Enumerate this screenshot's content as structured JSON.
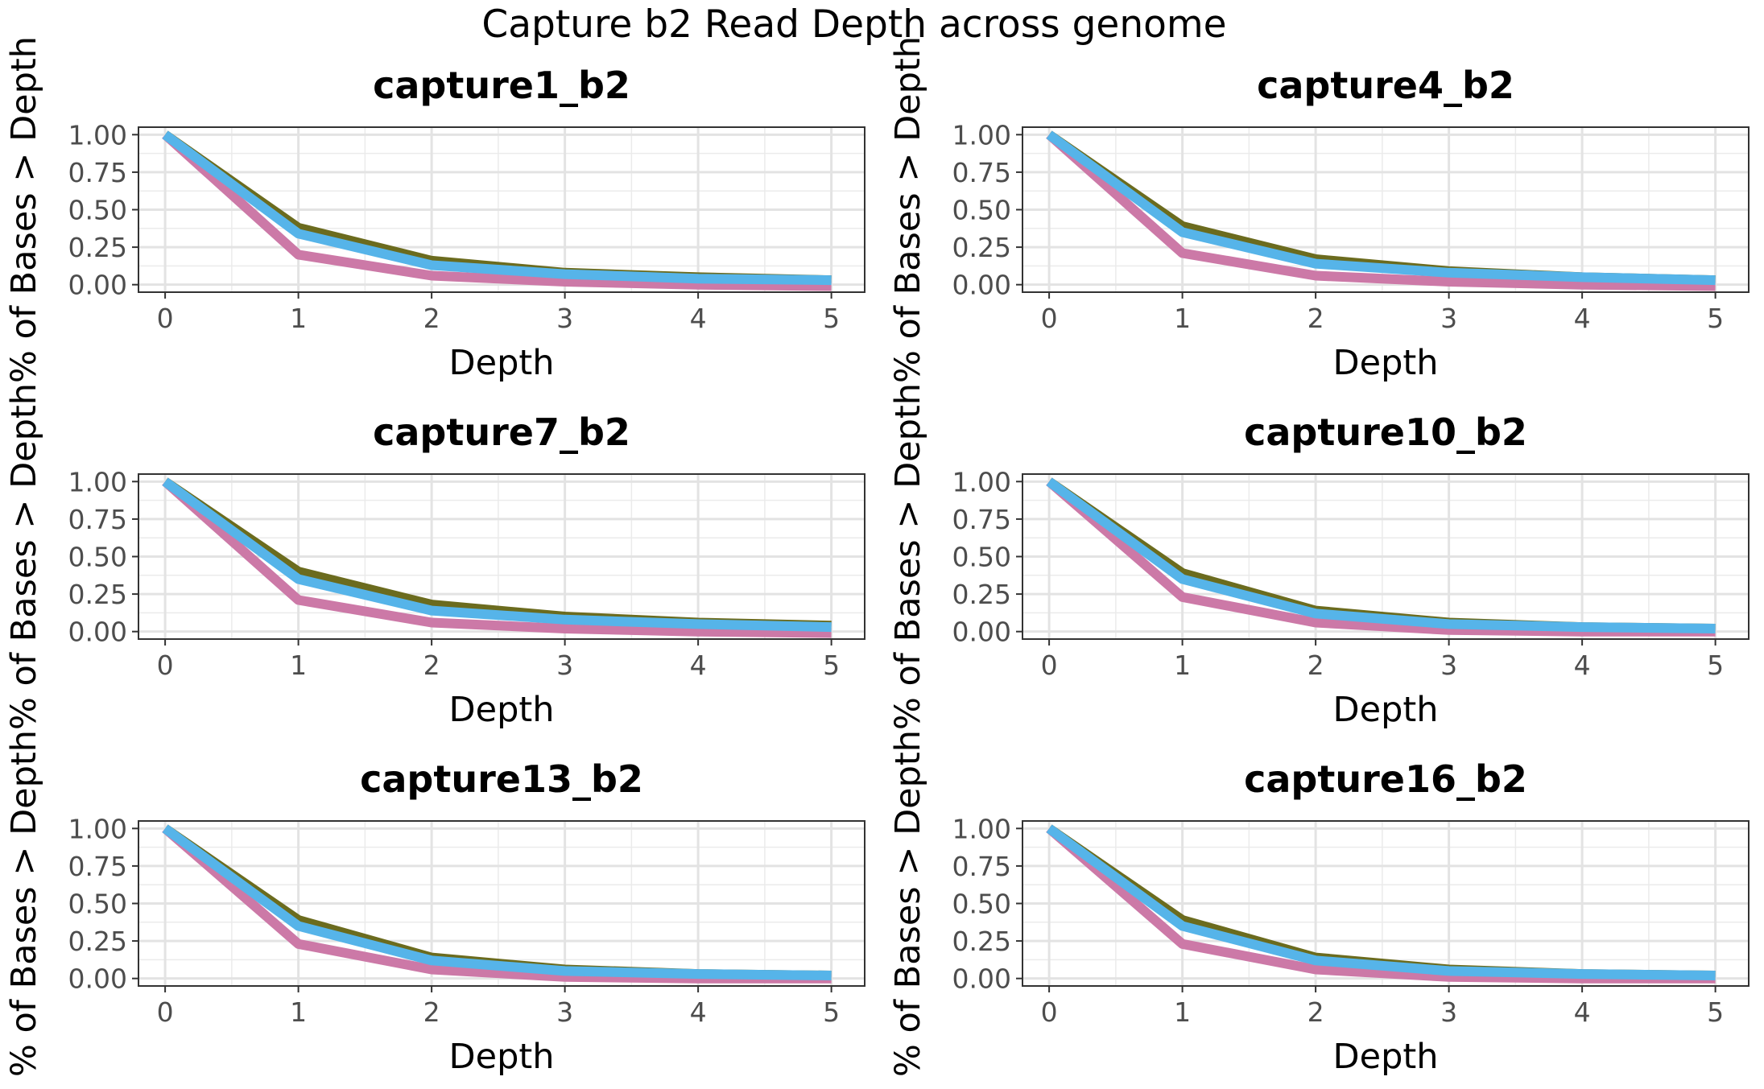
{
  "figure": {
    "title": "Capture b2 Read Depth across genome"
  },
  "series_colors": [
    "#6B6B1E",
    "#CC79A7",
    "#56B4E9"
  ],
  "chart_data": [
    {
      "type": "line",
      "title": "capture1_b2",
      "xlabel": "Depth",
      "ylabel": "% of Bases > Depth",
      "x": [
        0,
        1,
        2,
        3,
        4,
        5
      ],
      "xlim": [
        -0.2,
        5.25
      ],
      "ylim": [
        -0.05,
        1.05
      ],
      "xticks": [
        "0",
        "1",
        "2",
        "3",
        "4",
        "5"
      ],
      "yticks": [
        "0.00",
        "0.25",
        "0.50",
        "0.75",
        "1.00"
      ],
      "grid": true,
      "series": [
        {
          "color": "#6B6B1E",
          "values": [
            1.0,
            0.38,
            0.16,
            0.08,
            0.05,
            0.03
          ]
        },
        {
          "color": "#CC79A7",
          "values": [
            1.0,
            0.2,
            0.06,
            0.02,
            0.0,
            -0.01
          ]
        },
        {
          "color": "#56B4E9",
          "values": [
            1.0,
            0.34,
            0.13,
            0.07,
            0.04,
            0.03
          ]
        }
      ]
    },
    {
      "type": "line",
      "title": "capture4_b2",
      "xlabel": "Depth",
      "ylabel": "% of Bases > Depth",
      "x": [
        0,
        1,
        2,
        3,
        4,
        5
      ],
      "xlim": [
        -0.2,
        5.25
      ],
      "ylim": [
        -0.05,
        1.05
      ],
      "xticks": [
        "0",
        "1",
        "2",
        "3",
        "4",
        "5"
      ],
      "yticks": [
        "0.00",
        "0.25",
        "0.50",
        "0.75",
        "1.00"
      ],
      "grid": true,
      "series": [
        {
          "color": "#6B6B1E",
          "values": [
            1.0,
            0.39,
            0.17,
            0.09,
            0.05,
            0.03
          ]
        },
        {
          "color": "#CC79A7",
          "values": [
            1.0,
            0.21,
            0.06,
            0.02,
            0.0,
            -0.01
          ]
        },
        {
          "color": "#56B4E9",
          "values": [
            1.0,
            0.35,
            0.14,
            0.08,
            0.05,
            0.03
          ]
        }
      ]
    },
    {
      "type": "line",
      "title": "capture7_b2",
      "xlabel": "Depth",
      "ylabel": "% of Bases > Depth",
      "x": [
        0,
        1,
        2,
        3,
        4,
        5
      ],
      "xlim": [
        -0.2,
        5.25
      ],
      "ylim": [
        -0.05,
        1.05
      ],
      "xticks": [
        "0",
        "1",
        "2",
        "3",
        "4",
        "5"
      ],
      "yticks": [
        "0.00",
        "0.25",
        "0.50",
        "0.75",
        "1.00"
      ],
      "grid": true,
      "series": [
        {
          "color": "#6B6B1E",
          "values": [
            1.0,
            0.4,
            0.18,
            0.1,
            0.06,
            0.04
          ]
        },
        {
          "color": "#CC79A7",
          "values": [
            1.0,
            0.21,
            0.06,
            0.02,
            0.0,
            -0.01
          ]
        },
        {
          "color": "#56B4E9",
          "values": [
            1.0,
            0.35,
            0.14,
            0.08,
            0.05,
            0.03
          ]
        }
      ]
    },
    {
      "type": "line",
      "title": "capture10_b2",
      "xlabel": "Depth",
      "ylabel": "% of Bases > Depth",
      "x": [
        0,
        1,
        2,
        3,
        4,
        5
      ],
      "xlim": [
        -0.2,
        5.25
      ],
      "ylim": [
        -0.05,
        1.05
      ],
      "xticks": [
        "0",
        "1",
        "2",
        "3",
        "4",
        "5"
      ],
      "yticks": [
        "0.00",
        "0.25",
        "0.50",
        "0.75",
        "1.00"
      ],
      "grid": true,
      "series": [
        {
          "color": "#6B6B1E",
          "values": [
            1.0,
            0.39,
            0.14,
            0.06,
            0.03,
            0.02
          ]
        },
        {
          "color": "#CC79A7",
          "values": [
            1.0,
            0.23,
            0.06,
            0.01,
            0.0,
            0.0
          ]
        },
        {
          "color": "#56B4E9",
          "values": [
            1.0,
            0.35,
            0.12,
            0.05,
            0.03,
            0.02
          ]
        }
      ]
    },
    {
      "type": "line",
      "title": "capture13_b2",
      "xlabel": "Depth",
      "ylabel": "% of Bases > Depth",
      "x": [
        0,
        1,
        2,
        3,
        4,
        5
      ],
      "xlim": [
        -0.2,
        5.25
      ],
      "ylim": [
        -0.05,
        1.05
      ],
      "xticks": [
        "0",
        "1",
        "2",
        "3",
        "4",
        "5"
      ],
      "yticks": [
        "0.00",
        "0.25",
        "0.50",
        "0.75",
        "1.00"
      ],
      "grid": true,
      "series": [
        {
          "color": "#6B6B1E",
          "values": [
            1.0,
            0.39,
            0.14,
            0.06,
            0.03,
            0.02
          ]
        },
        {
          "color": "#CC79A7",
          "values": [
            1.0,
            0.23,
            0.06,
            0.01,
            0.0,
            0.0
          ]
        },
        {
          "color": "#56B4E9",
          "values": [
            1.0,
            0.35,
            0.12,
            0.05,
            0.03,
            0.02
          ]
        }
      ]
    },
    {
      "type": "line",
      "title": "capture16_b2",
      "xlabel": "Depth",
      "ylabel": "% of Bases > Depth",
      "x": [
        0,
        1,
        2,
        3,
        4,
        5
      ],
      "xlim": [
        -0.2,
        5.25
      ],
      "ylim": [
        -0.05,
        1.05
      ],
      "xticks": [
        "0",
        "1",
        "2",
        "3",
        "4",
        "5"
      ],
      "yticks": [
        "0.00",
        "0.25",
        "0.50",
        "0.75",
        "1.00"
      ],
      "grid": true,
      "series": [
        {
          "color": "#6B6B1E",
          "values": [
            1.0,
            0.39,
            0.14,
            0.06,
            0.03,
            0.02
          ]
        },
        {
          "color": "#CC79A7",
          "values": [
            1.0,
            0.23,
            0.06,
            0.01,
            0.0,
            0.0
          ]
        },
        {
          "color": "#56B4E9",
          "values": [
            1.0,
            0.35,
            0.12,
            0.05,
            0.03,
            0.02
          ]
        }
      ]
    }
  ]
}
